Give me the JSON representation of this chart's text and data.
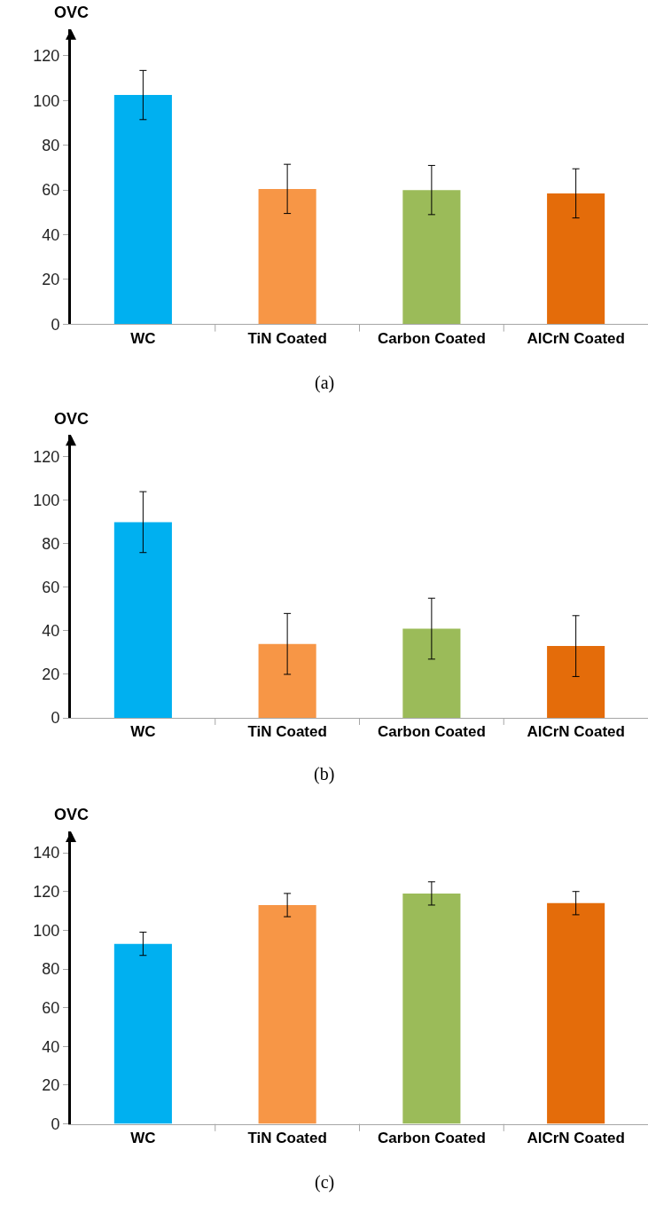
{
  "chart_data": [
    {
      "type": "bar",
      "ylabel": "OVC",
      "categories": [
        "WC",
        "TiN Coated",
        "Carbon Coated",
        "AlCrN Coated"
      ],
      "values": [
        102.5,
        60.5,
        60,
        58.5
      ],
      "errors": [
        11,
        11,
        11,
        11
      ],
      "colors": [
        "#00b0f0",
        "#f79646",
        "#9bbb59",
        "#e46c0a"
      ],
      "ylim": [
        0,
        132
      ],
      "yticks": [
        0,
        20,
        40,
        60,
        80,
        100,
        120
      ],
      "annotations": [
        "(a)"
      ]
    },
    {
      "type": "bar",
      "ylabel": "OVC",
      "categories": [
        "WC",
        "TiN Coated",
        "Carbon Coated",
        "AlCrN Coated"
      ],
      "values": [
        90,
        34,
        41,
        33
      ],
      "errors": [
        14,
        14,
        14,
        14
      ],
      "colors": [
        "#00b0f0",
        "#f79646",
        "#9bbb59",
        "#e46c0a"
      ],
      "ylim": [
        0,
        130
      ],
      "yticks": [
        0,
        20,
        40,
        60,
        80,
        100,
        120
      ],
      "annotations": [
        "(b)"
      ]
    },
    {
      "type": "bar",
      "ylabel": "OVC",
      "categories": [
        "WC",
        "TiN Coated",
        "Carbon Coated",
        "AlCrN Coated"
      ],
      "values": [
        93,
        113,
        119,
        114
      ],
      "errors": [
        6,
        6,
        6,
        6
      ],
      "colors": [
        "#00b0f0",
        "#f79646",
        "#9bbb59",
        "#e46c0a"
      ],
      "ylim": [
        0,
        151
      ],
      "yticks": [
        0,
        20,
        40,
        60,
        80,
        100,
        120,
        140
      ],
      "annotations": [
        "(c)"
      ]
    }
  ]
}
